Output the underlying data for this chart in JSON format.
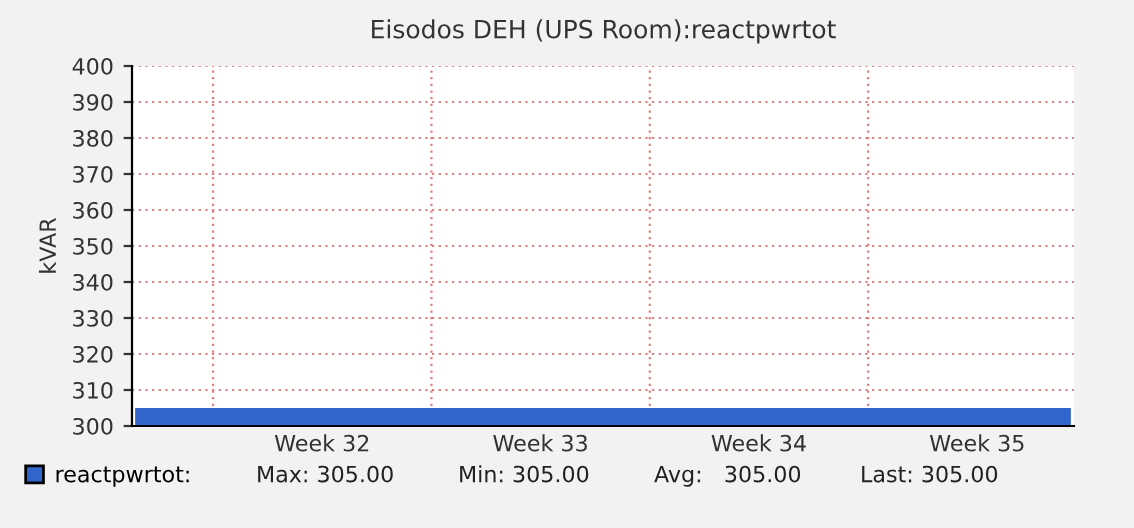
{
  "chart_data": {
    "type": "area",
    "title": "Eisodos DEH (UPS Room):reactpwrtot",
    "ylabel": "kVAR",
    "categories": [
      null,
      null,
      null,
      null,
      null,
      null,
      "Week 32",
      null,
      null,
      null,
      null,
      null,
      null,
      "Week 33",
      null,
      null,
      null,
      null,
      null,
      null,
      "Week 34",
      null,
      null,
      null,
      null,
      null,
      null,
      "Week 35",
      null,
      null,
      null
    ],
    "series": [
      {
        "name": "reactpwrtot:",
        "color": "#3366cc",
        "values": [
          305,
          305,
          305,
          305,
          305,
          305,
          305,
          305,
          305,
          305,
          305,
          305,
          305,
          305,
          305,
          305,
          305,
          305,
          305,
          305,
          305,
          305,
          305,
          305,
          305,
          305,
          305,
          305,
          305,
          305,
          305
        ]
      }
    ],
    "ylim": [
      300,
      400
    ],
    "yticks": [
      300,
      310,
      320,
      330,
      340,
      350,
      360,
      370,
      380,
      390,
      400
    ],
    "grid": true,
    "legend": "bottom",
    "annotations": [
      "Max: 305.00",
      "Min: 305.00",
      "Avg:   305.00",
      "Last: 305.00"
    ]
  }
}
